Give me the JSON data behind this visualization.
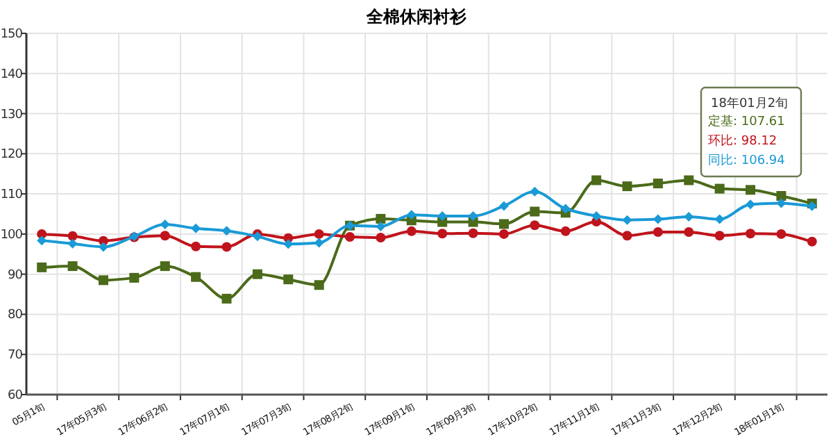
{
  "chart_data": {
    "type": "line",
    "title": "全棉休闲衬衫",
    "categories": [
      "05月1旬",
      null,
      "17年05月3旬",
      null,
      "17年06月2旬",
      null,
      "17年07月1旬",
      null,
      "17年07月3旬",
      null,
      "17年08月2旬",
      null,
      "17年09月1旬",
      null,
      "17年09月3旬",
      null,
      "17年10月2旬",
      null,
      "17年11月1旬",
      null,
      "17年11月3旬",
      null,
      "17年12月2旬",
      null,
      "18年01月1旬",
      null
    ],
    "ylim": [
      60,
      150
    ],
    "yticks": [
      60,
      70,
      80,
      90,
      100,
      110,
      120,
      130,
      140,
      150
    ],
    "grid": true,
    "annotations": [
      "18年01月2旬",
      "定基: 107.61",
      "环比: 98.12",
      "同比: 106.94"
    ],
    "series": [
      {
        "color": "#4b6a1a",
        "marker": "square",
        "values": [
          91.7,
          92.0,
          88.5,
          89.1,
          92.0,
          89.3,
          83.9,
          90.0,
          88.7,
          87.3,
          102.1,
          103.8,
          103.4,
          103.0,
          103.0,
          102.5,
          105.6,
          105.3,
          113.4,
          111.9,
          112.6,
          113.4,
          111.3,
          111.0,
          109.5,
          107.61
        ]
      },
      {
        "color": "#c0141c",
        "marker": "circle",
        "values": [
          100.0,
          99.5,
          98.3,
          99.2,
          99.6,
          96.9,
          96.8,
          100.0,
          99.0,
          100.0,
          99.3,
          99.1,
          100.7,
          100.1,
          100.2,
          100.0,
          102.2,
          100.7,
          103.1,
          99.6,
          100.5,
          100.5,
          99.6,
          100.1,
          100.0,
          98.12
        ]
      },
      {
        "color": "#1a9ad6",
        "marker": "diamond",
        "values": [
          98.4,
          97.6,
          96.8,
          99.4,
          102.4,
          101.4,
          100.8,
          99.4,
          97.5,
          97.8,
          102.1,
          101.9,
          104.8,
          104.5,
          104.5,
          107.0,
          110.6,
          106.3,
          104.5,
          103.5,
          103.7,
          104.3,
          103.7,
          107.4,
          107.7,
          106.94
        ]
      }
    ]
  }
}
